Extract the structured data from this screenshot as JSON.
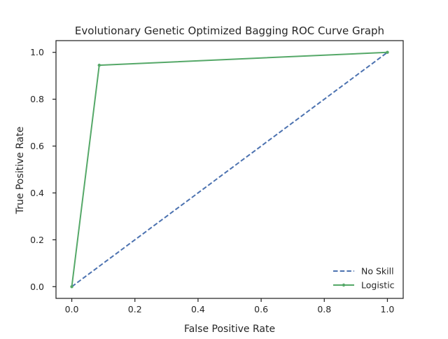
{
  "chart_data": {
    "type": "line",
    "title": "Evolutionary Genetic Optimized Bagging ROC Curve Graph",
    "xlabel": "False Positive Rate",
    "ylabel": "True Positive Rate",
    "xlim": [
      -0.05,
      1.05
    ],
    "ylim": [
      -0.05,
      1.05
    ],
    "xticks": [
      0.0,
      0.2,
      0.4,
      0.6,
      0.8,
      1.0
    ],
    "xtick_labels": [
      "0.0",
      "0.2",
      "0.4",
      "0.6",
      "0.8",
      "1.0"
    ],
    "yticks": [
      0.0,
      0.2,
      0.4,
      0.6,
      0.8,
      1.0
    ],
    "ytick_labels": [
      "0.0",
      "0.2",
      "0.4",
      "0.6",
      "0.8",
      "1.0"
    ],
    "grid": false,
    "legend_position": "lower-right",
    "series": [
      {
        "name": "No Skill",
        "style": "dashed",
        "marker": "none",
        "color": "#4c72b0",
        "x": [
          0.0,
          1.0
        ],
        "y": [
          0.0,
          1.0
        ]
      },
      {
        "name": "Logistic",
        "style": "solid",
        "marker": "point",
        "color": "#55a868",
        "x": [
          0.0,
          0.087,
          1.0
        ],
        "y": [
          0.0,
          0.945,
          1.0
        ]
      }
    ]
  }
}
